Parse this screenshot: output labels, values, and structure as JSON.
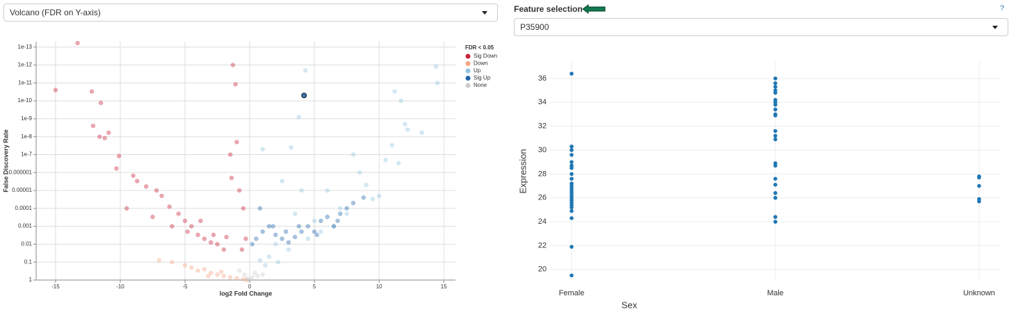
{
  "plot_selector": {
    "value": "Volcano (FDR on Y-axis)"
  },
  "feature_selection": {
    "label": "Feature selection",
    "help": "?",
    "value": "P35900"
  },
  "chart_data": [
    {
      "type": "scatter",
      "x_label": "log2 Fold Change",
      "y_label": "False Discovery Rate",
      "xlim": [
        -16.5,
        15.9
      ],
      "xticks": [
        -15,
        -10,
        -5,
        0,
        5,
        10,
        15
      ],
      "ylim": [
        1,
        5e-14
      ],
      "yticks": [
        1,
        0.1,
        0.01,
        0.001,
        0.0001,
        1e-05,
        1e-06,
        1e-07,
        1e-08,
        1e-09,
        1e-10,
        1e-11,
        1e-12,
        1e-13
      ],
      "yscale": "log",
      "grid": true,
      "legend_title": "FDR < 0.05",
      "legend": "right",
      "series": [
        {
          "name": "Sig Down",
          "color": "#c8233a",
          "x": [
            -15,
            -13.3,
            -12.2,
            -11.5,
            -12.1,
            -11.6,
            -11.2,
            -10.9,
            -10.1,
            -10.3,
            -9,
            -8.7,
            -8,
            -7.2,
            -6.8,
            -6.2,
            -5.5,
            -5,
            -4.5,
            -4,
            -3.5,
            -3,
            -2.5,
            -2,
            -1.5,
            -1.3,
            -1.1,
            -1,
            -0.8,
            -0.5,
            -0.3,
            -7.5,
            -6,
            -4.8,
            -3.8,
            -2.8,
            -1.8,
            -0.6,
            -9.5,
            -1.4
          ],
          "values": [
            2.5e-11,
            6e-14,
            3e-11,
            1.3e-10,
            2.5e-09,
            1e-08,
            1.2e-08,
            6e-09,
            1.2e-07,
            6e-07,
            1.5e-06,
            3e-06,
            6e-06,
            1e-05,
            2e-05,
            8e-05,
            0.0002,
            0.0005,
            0.001,
            0.003,
            0.005,
            0.008,
            0.01,
            0.02,
            1e-07,
            1e-12,
            1.2e-11,
            2e-08,
            1e-05,
            0.0001,
            0.005,
            0.0003,
            0.001,
            0.002,
            0.0005,
            0.003,
            0.004,
            0.02,
            0.0001,
            2e-06
          ]
        },
        {
          "name": "Down",
          "color": "#f4a582",
          "x": [
            -7,
            -6,
            -5,
            -4.5,
            -4,
            -3.5,
            -3,
            -2.5,
            -2,
            -1.5,
            -1,
            -0.5,
            -3.2,
            -2.2,
            -0.2
          ],
          "values": [
            0.08,
            0.1,
            0.15,
            0.2,
            0.3,
            0.25,
            0.4,
            0.5,
            0.6,
            0.7,
            0.8,
            0.9,
            0.6,
            0.35,
            1
          ]
        },
        {
          "name": "Up",
          "color": "#92c5de",
          "x": [
            14.4,
            14.5,
            4.3,
            11.2,
            11.7,
            12.2,
            13.3,
            11,
            10.5,
            8,
            3.8,
            3.2,
            1,
            2.5,
            6,
            8.5,
            9,
            4,
            3.5,
            5,
            7,
            10,
            12,
            2,
            1.5,
            0.8,
            6.5,
            9.5,
            11.5,
            7.5,
            5.5,
            3,
            4.5,
            2.2,
            1.2
          ],
          "values": [
            1.2e-12,
            1e-11,
            2e-12,
            3e-11,
            1e-10,
            4e-09,
            6e-09,
            3e-08,
            2e-07,
            1e-07,
            8e-10,
            4e-08,
            5e-08,
            3e-06,
            1e-05,
            1e-06,
            5e-06,
            1e-05,
            0.0002,
            0.0005,
            0.0001,
            2e-05,
            2e-09,
            0.01,
            0.05,
            0.08,
            0.001,
            3e-05,
            3e-07,
            0.0002,
            0.002,
            0.02,
            0.005,
            0.1,
            0.15
          ]
        },
        {
          "name": "Sig Up",
          "color": "#2166ac",
          "highlight_index": 0,
          "x": [
            4.2,
            0.2,
            0.5,
            1,
            1.5,
            2,
            2.5,
            3,
            3.5,
            4,
            4.5,
            5,
            5.5,
            6,
            6.5,
            7,
            7.5,
            8,
            8.8,
            0.8,
            1.8,
            2.8,
            3.8,
            5.2,
            6.8
          ],
          "values": [
            5e-11,
            0.01,
            0.005,
            0.002,
            0.001,
            0.003,
            0.005,
            0.008,
            0.004,
            0.002,
            0.001,
            0.002,
            0.0005,
            0.0003,
            0.001,
            0.0002,
            0.0001,
            5e-05,
            2.5e-05,
            0.0001,
            0.001,
            0.002,
            0.001,
            0.003,
            0.0005
          ]
        },
        {
          "name": "None",
          "color": "#cccccc",
          "x": [
            -0.4,
            -0.2,
            0,
            0.2,
            0.4,
            0.6,
            -0.8,
            1
          ],
          "values": [
            0.5,
            0.8,
            1,
            0.7,
            0.4,
            0.6,
            0.3,
            0.5
          ]
        }
      ]
    },
    {
      "type": "strip",
      "x_label": "Sex",
      "y_label": "Expression",
      "categories": [
        "Female",
        "Male",
        "Unknown"
      ],
      "ylim": [
        19,
        37.45
      ],
      "yticks": [
        20,
        22,
        24,
        26,
        28,
        30,
        32,
        34,
        36
      ],
      "grid": true,
      "color": "#1f77b4",
      "values": [
        [
          36.4,
          30.3,
          30,
          29.6,
          29,
          28.7,
          28.5,
          28,
          27.6,
          27.2,
          27,
          26.8,
          26.6,
          26.4,
          26.2,
          26,
          25.8,
          25.6,
          25.4,
          25.2,
          24.9,
          24.3,
          21.9,
          19.5
        ],
        [
          36,
          35.6,
          35.3,
          35,
          34.8,
          34.2,
          34,
          33.8,
          33.4,
          33,
          32.9,
          31.6,
          31.2,
          30.9,
          28.9,
          28.7,
          27.6,
          27.1,
          26.4,
          26,
          24.4,
          24
        ],
        [
          27.8,
          27.7,
          27,
          25.9,
          25.7
        ]
      ]
    }
  ]
}
